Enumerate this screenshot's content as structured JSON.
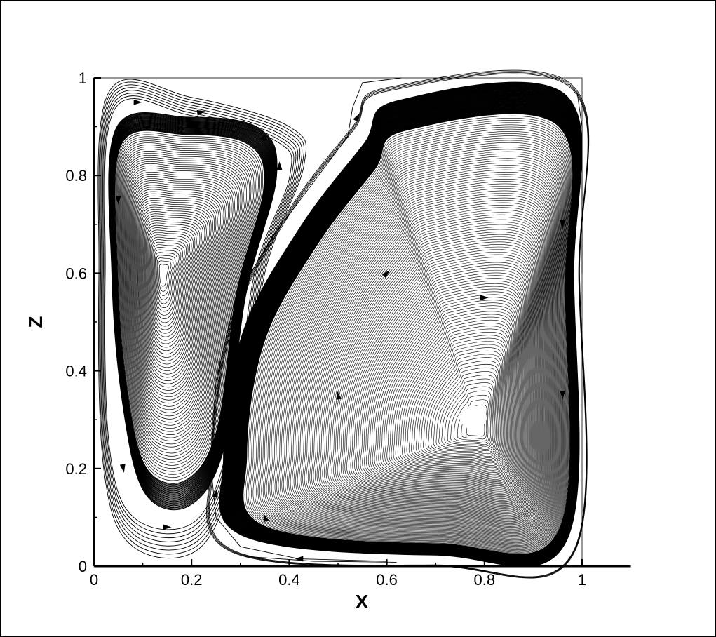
{
  "chart_data": {
    "type": "streamline",
    "title": "",
    "xlabel": "X",
    "ylabel": "Z",
    "xlim": [
      0,
      1.1
    ],
    "ylim": [
      0,
      1
    ],
    "x_ticks": [
      "0",
      "0.2",
      "0.4",
      "0.6",
      "0.8",
      "1"
    ],
    "y_ticks": [
      "0",
      "0.2",
      "0.4",
      "0.6",
      "0.8",
      "1"
    ],
    "grid": false,
    "legend": "none",
    "domain": {
      "x": [
        0,
        1
      ],
      "z": [
        0,
        1
      ]
    },
    "vortices": [
      {
        "name": "",
        "center": [
          0.14,
          0.6
        ],
        "extent_x": [
          0.02,
          0.42
        ],
        "extent_z": [
          0.05,
          0.97
        ],
        "core_hole": false
      },
      {
        "name": "",
        "center": [
          0.79,
          0.28
        ],
        "extent_x": [
          0.24,
          1.0
        ],
        "extent_z": [
          0.02,
          0.97
        ],
        "core_hole": true
      }
    ],
    "colors": {
      "lines": "#000000",
      "background": "#ffffff"
    }
  }
}
